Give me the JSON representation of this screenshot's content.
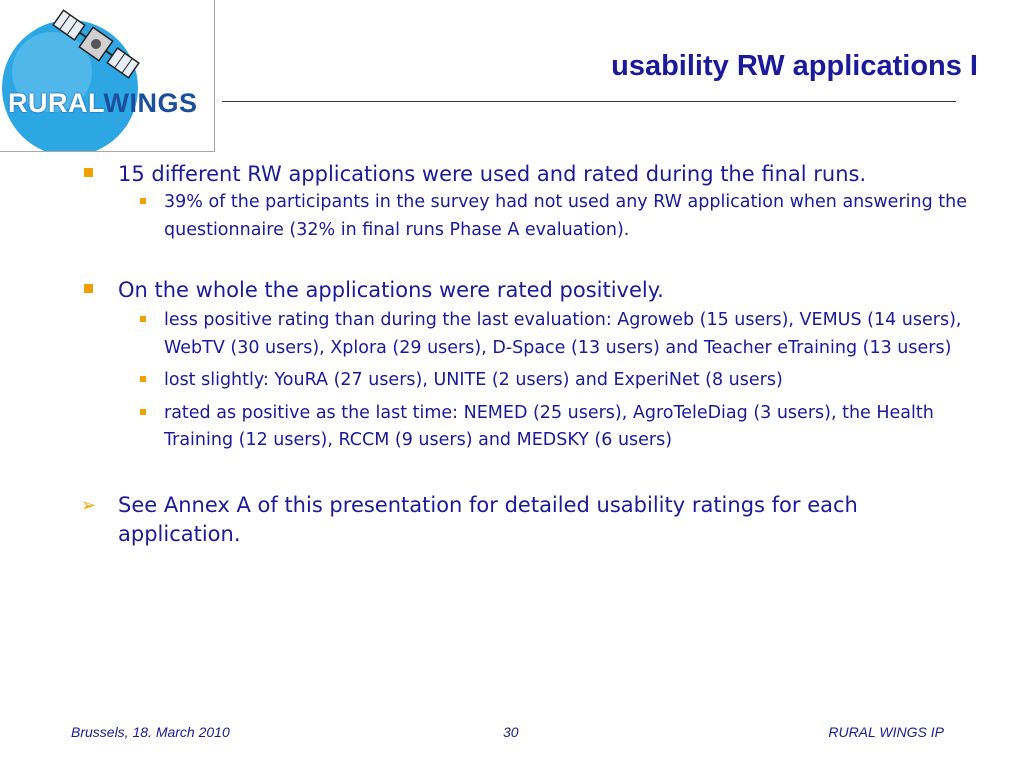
{
  "logo": {
    "part1": "RURAL",
    "part2": "WINGS"
  },
  "slide": {
    "title": "usability RW applications I"
  },
  "content": {
    "b1": "15 different RW applications were used and rated during the final runs.",
    "b1_sub1": "39% of the participants in the survey had not used any RW application when answering the questionnaire (32% in final runs Phase A evaluation).",
    "b2": "On the whole the applications were rated positively.",
    "b2_sub1": "less positive rating than during the last evaluation: Agroweb (15 users), VEMUS (14 users), WebTV (30 users), Xplora (29 users), D-Space (13 users) and Teacher eTraining (13 users)",
    "b2_sub2": "lost slightly: YouRA (27 users), UNITE (2 users) and ExperiNet (8 users)",
    "b2_sub3": "rated as positive as the last time: NEMED (25 users), AgroTeleDiag (3 users), the Health Training (12 users), RCCM (9 users) and MEDSKY (6 users)",
    "b3": "See Annex A of this presentation for detailed usability ratings for each application."
  },
  "footer": {
    "left": "Brussels, 18. March 2010",
    "page": "30",
    "right": "RURAL WINGS IP"
  },
  "colors": {
    "text": "#1a1a9a",
    "bullet": "#f0a000",
    "logo_blue": "#1b4f9c",
    "globe": "#2da7e4"
  },
  "icons": {
    "bullet_level3": "arrow-bullet-icon",
    "logo_graphic": "satellite-icon"
  }
}
